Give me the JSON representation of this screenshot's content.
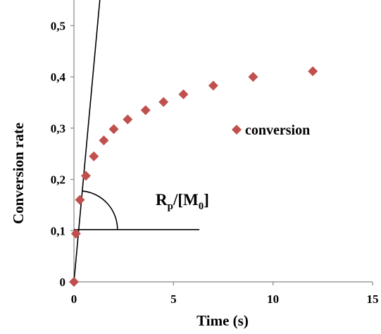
{
  "chart_data": {
    "type": "scatter",
    "xlabel": "Time (s)",
    "ylabel": "Conversion rate",
    "xlim": [
      0,
      15
    ],
    "ylim": [
      0,
      0.5
    ],
    "x_ticks": [
      0,
      5,
      10,
      15
    ],
    "x_tick_labels": [
      "0",
      "5",
      "10",
      "15"
    ],
    "y_ticks": [
      0,
      0.1,
      0.2,
      0.3,
      0.4,
      0.5
    ],
    "y_tick_labels": [
      "0",
      "0,1",
      "0,2",
      "0,3",
      "0,4",
      "0,5"
    ],
    "grid": false,
    "legend_position": "right",
    "series": [
      {
        "name": "conversion",
        "color": "#c0504d",
        "marker": "diamond",
        "x": [
          0,
          0.1,
          0.3,
          0.6,
          1.0,
          1.5,
          2.0,
          2.7,
          3.6,
          4.5,
          5.5,
          7.0,
          9.0,
          12.0
        ],
        "y": [
          0,
          0.094,
          0.16,
          0.207,
          0.245,
          0.276,
          0.298,
          0.317,
          0.335,
          0.351,
          0.366,
          0.383,
          0.4,
          0.411
        ]
      }
    ],
    "annotations": {
      "slope_label": "R",
      "slope_label_sub": "p",
      "slope_label_mid": "/[M",
      "slope_label_sub2": "0",
      "slope_label_end": "]",
      "tangent_line": {
        "x": [
          0,
          1.3
        ],
        "y": [
          0,
          0.55
        ]
      },
      "reference_line": {
        "x": [
          0,
          6.3
        ],
        "y": [
          0.102,
          0.102
        ]
      }
    }
  }
}
